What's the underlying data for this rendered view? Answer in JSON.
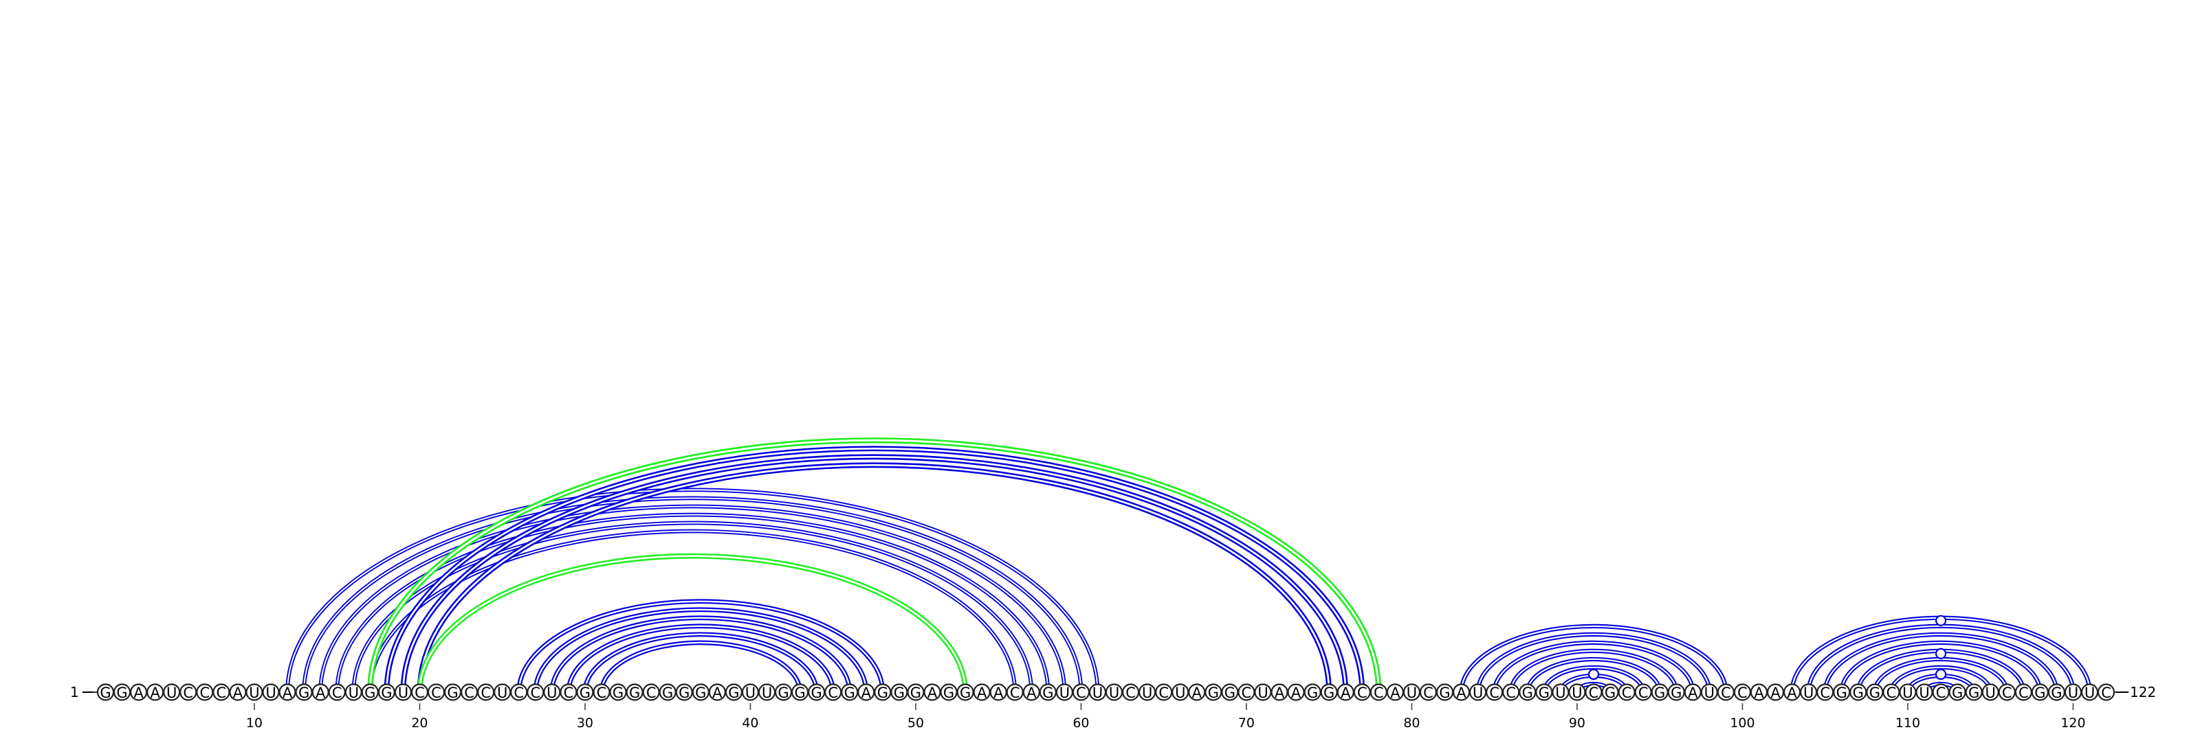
{
  "sequence": "GGAAUCCCAUUAGACUGGUCCGCCUCCUCGCGGCGGGAGUUGGGCGAGGGAGGAACAGUCUUCUCUAGGCUAAGGACCAUCGAUCCGGUUCGCCGGAUCCAAAUCGGGCUUCGGUCCGGUUC",
  "length": 122,
  "start_label": "1",
  "end_label": "122",
  "tick_labels": [
    "10",
    "20",
    "30",
    "40",
    "50",
    "60",
    "70",
    "80",
    "90",
    "100",
    "110",
    "120"
  ],
  "colors": {
    "blue": "#0000dd",
    "green": "#22ee22"
  },
  "pairs": [
    {
      "i": 12,
      "j": 61,
      "color": "blue",
      "width": 2.2
    },
    {
      "i": 13,
      "j": 60,
      "color": "blue",
      "width": 2.2
    },
    {
      "i": 14,
      "j": 59,
      "color": "blue",
      "width": 2.2
    },
    {
      "i": 15,
      "j": 58,
      "color": "blue",
      "width": 2.2
    },
    {
      "i": 16,
      "j": 57,
      "color": "blue",
      "width": 2.2
    },
    {
      "i": 17,
      "j": 56,
      "color": "blue",
      "width": 2.2
    },
    {
      "i": 17,
      "j": 78,
      "color": "green",
      "width": 3.2
    },
    {
      "i": 18,
      "j": 77,
      "color": "blue",
      "width": 3.0
    },
    {
      "i": 19,
      "j": 76,
      "color": "blue",
      "width": 3.0
    },
    {
      "i": 20,
      "j": 75,
      "color": "blue",
      "width": 3.0
    },
    {
      "i": 20,
      "j": 53,
      "color": "green",
      "width": 3.0
    },
    {
      "i": 26,
      "j": 48,
      "color": "blue",
      "width": 2.6
    },
    {
      "i": 27,
      "j": 47,
      "color": "blue",
      "width": 2.6
    },
    {
      "i": 28,
      "j": 46,
      "color": "blue",
      "width": 2.6
    },
    {
      "i": 29,
      "j": 45,
      "color": "blue",
      "width": 2.6
    },
    {
      "i": 30,
      "j": 44,
      "color": "blue",
      "width": 2.6
    },
    {
      "i": 31,
      "j": 43,
      "color": "blue",
      "width": 2.6
    },
    {
      "i": 83,
      "j": 99,
      "color": "blue",
      "width": 2.4
    },
    {
      "i": 84,
      "j": 98,
      "color": "blue",
      "width": 2.4
    },
    {
      "i": 85,
      "j": 97,
      "color": "blue",
      "width": 2.4
    },
    {
      "i": 86,
      "j": 96,
      "color": "blue",
      "width": 2.4
    },
    {
      "i": 87,
      "j": 95,
      "color": "blue",
      "width": 2.4
    },
    {
      "i": 88,
      "j": 94,
      "color": "blue",
      "width": 2.4
    },
    {
      "i": 89,
      "j": 93,
      "color": "blue",
      "width": 2.4
    },
    {
      "i": 90,
      "j": 92,
      "color": "blue",
      "width": 2.4
    },
    {
      "i": 103,
      "j": 121,
      "color": "blue",
      "width": 2.4
    },
    {
      "i": 104,
      "j": 120,
      "color": "blue",
      "width": 2.4
    },
    {
      "i": 105,
      "j": 119,
      "color": "blue",
      "width": 2.4
    },
    {
      "i": 106,
      "j": 118,
      "color": "blue",
      "width": 2.4
    },
    {
      "i": 107,
      "j": 117,
      "color": "blue",
      "width": 2.4
    },
    {
      "i": 108,
      "j": 116,
      "color": "blue",
      "width": 2.4
    },
    {
      "i": 109,
      "j": 115,
      "color": "blue",
      "width": 2.4
    },
    {
      "i": 110,
      "j": 114,
      "color": "blue",
      "width": 2.4
    },
    {
      "i": 111,
      "j": 113,
      "color": "blue",
      "width": 2.4
    }
  ],
  "markers": [
    {
      "position": 91,
      "arc_index": 0.5
    },
    {
      "position": 112,
      "arc_index": 0.5
    },
    {
      "position": 112,
      "arc_index": 3
    },
    {
      "position": 112,
      "arc_index": 7
    }
  ]
}
